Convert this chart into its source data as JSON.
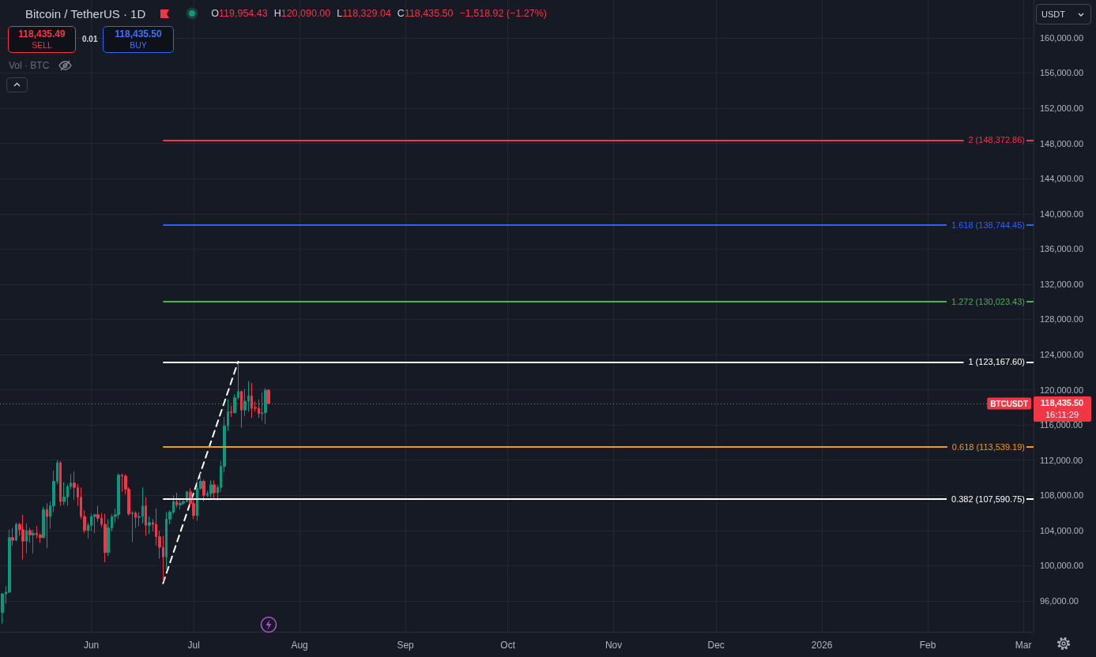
{
  "chart_data": {
    "type": "candlestick",
    "title": "Bitcoin / TetherUS · 1D",
    "annotations": [
      "O119,954.43",
      "H120,090.00",
      "L118,329.04",
      "C118,435.50",
      "−1,518.92 (−1.27%)",
      "118,435.49",
      "SELL",
      "0.01",
      "118,435.50",
      "BUY",
      "Vol · BTC",
      "USDT",
      "16:11:29"
    ],
    "series": [
      {
        "x": [
          "2025-05-06",
          "2025-05-07",
          "2025-05-08",
          "2025-05-09",
          "2025-05-10",
          "2025-05-11",
          "2025-05-12",
          "2025-05-13",
          "2025-05-14",
          "2025-05-15",
          "2025-05-16",
          "2025-05-17",
          "2025-05-18",
          "2025-05-19",
          "2025-05-20",
          "2025-05-21",
          "2025-05-22",
          "2025-05-23",
          "2025-05-24",
          "2025-05-25",
          "2025-05-26",
          "2025-05-27",
          "2025-05-28",
          "2025-05-29",
          "2025-05-30",
          "2025-05-31",
          "2025-06-01",
          "2025-06-02",
          "2025-06-03",
          "2025-06-04",
          "2025-06-05",
          "2025-06-06",
          "2025-06-07",
          "2025-06-08",
          "2025-06-09",
          "2025-06-10",
          "2025-06-11",
          "2025-06-12",
          "2025-06-13",
          "2025-06-14",
          "2025-06-15",
          "2025-06-16",
          "2025-06-17",
          "2025-06-18",
          "2025-06-19",
          "2025-06-20",
          "2025-06-21",
          "2025-06-22",
          "2025-06-23",
          "2025-06-24",
          "2025-06-25",
          "2025-06-26",
          "2025-06-27",
          "2025-06-28",
          "2025-06-29",
          "2025-06-30",
          "2025-07-01",
          "2025-07-02",
          "2025-07-03",
          "2025-07-04",
          "2025-07-05",
          "2025-07-06",
          "2025-07-07",
          "2025-07-08",
          "2025-07-09",
          "2025-07-10",
          "2025-07-11",
          "2025-07-12",
          "2025-07-13",
          "2025-07-14",
          "2025-07-15",
          "2025-07-16",
          "2025-07-17",
          "2025-07-18",
          "2025-07-19",
          "2025-07-20",
          "2025-07-21",
          "2025-07-22",
          "2025-07-23"
        ],
        "ohlc": [
          [
            94700,
            96900,
            93400,
            96800
          ],
          [
            96800,
            97700,
            95700,
            97000
          ],
          [
            97000,
            104100,
            96900,
            103200
          ],
          [
            103200,
            104300,
            102300,
            102900
          ],
          [
            102900,
            104900,
            102800,
            104700
          ],
          [
            104700,
            104900,
            103400,
            104100
          ],
          [
            104100,
            105800,
            100700,
            102800
          ],
          [
            102800,
            104800,
            101400,
            104000
          ],
          [
            104000,
            104300,
            102600,
            103500
          ],
          [
            103500,
            104100,
            101400,
            103700
          ],
          [
            103700,
            104500,
            103100,
            103500
          ],
          [
            103500,
            103700,
            102600,
            103200
          ],
          [
            103200,
            106700,
            103100,
            106400
          ],
          [
            106400,
            107100,
            102000,
            105600
          ],
          [
            105600,
            107300,
            104200,
            106800
          ],
          [
            106800,
            110800,
            106100,
            109600
          ],
          [
            109600,
            112000,
            109300,
            111700
          ],
          [
            111700,
            111900,
            106800,
            107300
          ],
          [
            107300,
            109500,
            106900,
            107800
          ],
          [
            107800,
            109300,
            106800,
            109000
          ],
          [
            109000,
            110400,
            108700,
            109400
          ],
          [
            109400,
            110700,
            107500,
            108900
          ],
          [
            108900,
            109300,
            106800,
            107800
          ],
          [
            107800,
            108900,
            105300,
            105600
          ],
          [
            105600,
            106300,
            103700,
            104000
          ],
          [
            104000,
            104900,
            103100,
            104600
          ],
          [
            104600,
            105900,
            103900,
            105600
          ],
          [
            105600,
            105900,
            103700,
            105800
          ],
          [
            105800,
            106800,
            105000,
            105400
          ],
          [
            105400,
            106000,
            104400,
            104700
          ],
          [
            104700,
            105900,
            100400,
            101500
          ],
          [
            101500,
            105300,
            101100,
            104300
          ],
          [
            104300,
            105900,
            103900,
            105600
          ],
          [
            105600,
            106500,
            104900,
            105800
          ],
          [
            105800,
            110500,
            105300,
            110300
          ],
          [
            110300,
            110500,
            108400,
            110200
          ],
          [
            110200,
            110400,
            108100,
            108700
          ],
          [
            108700,
            108900,
            105700,
            105900
          ],
          [
            105900,
            106200,
            102700,
            106000
          ],
          [
            106000,
            106200,
            104300,
            105500
          ],
          [
            105500,
            106100,
            104500,
            105600
          ],
          [
            105600,
            108900,
            104800,
            106800
          ],
          [
            106800,
            107800,
            103400,
            104600
          ],
          [
            104600,
            105600,
            103600,
            104900
          ],
          [
            104900,
            105300,
            103900,
            104700
          ],
          [
            104700,
            106500,
            102300,
            103300
          ],
          [
            103300,
            104000,
            100800,
            102100
          ],
          [
            102100,
            103400,
            98200,
            101000
          ],
          [
            101000,
            106100,
            99600,
            105300
          ],
          [
            105300,
            106300,
            104700,
            106100
          ],
          [
            106100,
            108000,
            105900,
            107300
          ],
          [
            107300,
            108300,
            106600,
            106900
          ],
          [
            106900,
            107700,
            106400,
            107100
          ],
          [
            107100,
            107600,
            106900,
            107300
          ],
          [
            107300,
            108500,
            107200,
            108400
          ],
          [
            108400,
            108800,
            106700,
            107100
          ],
          [
            107100,
            107600,
            105300,
            105700
          ],
          [
            105700,
            109800,
            105100,
            108800
          ],
          [
            108800,
            110500,
            108600,
            109600
          ],
          [
            109600,
            109800,
            107300,
            108000
          ],
          [
            108000,
            108500,
            107800,
            108200
          ],
          [
            108200,
            109700,
            107800,
            109200
          ],
          [
            109200,
            109700,
            107500,
            108300
          ],
          [
            108300,
            109200,
            107400,
            108900
          ],
          [
            108900,
            111900,
            108400,
            111300
          ],
          [
            111300,
            116900,
            110600,
            115900
          ],
          [
            115900,
            118900,
            115300,
            117500
          ],
          [
            117500,
            118200,
            116900,
            117400
          ],
          [
            117400,
            119500,
            117300,
            119100
          ],
          [
            119100,
            123200,
            118900,
            119800
          ],
          [
            119800,
            119900,
            115700,
            117700
          ],
          [
            117700,
            120100,
            117000,
            118700
          ],
          [
            118700,
            121000,
            117500,
            119300
          ],
          [
            119300,
            120800,
            116800,
            117900
          ],
          [
            118000,
            118700,
            117500,
            117900
          ],
          [
            117900,
            118900,
            116800,
            117300
          ],
          [
            117300,
            119700,
            116500,
            117400
          ],
          [
            117400,
            120200,
            116100,
            119950
          ],
          [
            119954.43,
            120090.0,
            118329.04,
            118435.5
          ]
        ]
      },
      {
        "type": "line",
        "x": [
          "2025-06-22",
          "2025-07-14"
        ],
        "values": [
          98000,
          123200
        ],
        "color": "#ffffff",
        "line_style": "dashed"
      }
    ],
    "xlim": [
      "2025-05-05T06:00",
      "2026-03-04"
    ],
    "xticks": [
      {
        "value": "2025-06-01",
        "label": "Jun"
      },
      {
        "value": "2025-07-01",
        "label": "Jul"
      },
      {
        "value": "2025-08-01",
        "label": "Aug"
      },
      {
        "value": "2025-09-01",
        "label": "Sep"
      },
      {
        "value": "2025-10-01",
        "label": "Oct"
      },
      {
        "value": "2025-11-01",
        "label": "Nov"
      },
      {
        "value": "2025-12-01",
        "label": "Dec"
      },
      {
        "value": "2026-01-01",
        "label": "2026"
      },
      {
        "value": "2026-02-01",
        "label": "Feb"
      },
      {
        "value": "2026-03-01",
        "label": "Mar"
      }
    ],
    "ylim": [
      92500,
      164300
    ],
    "yticks": [
      {
        "value": 96000,
        "label": "96,000.00"
      },
      {
        "value": 100000,
        "label": "100,000.00"
      },
      {
        "value": 104000,
        "label": "104,000.00"
      },
      {
        "value": 108000,
        "label": "108,000.00"
      },
      {
        "value": 112000,
        "label": "112,000.00"
      },
      {
        "value": 116000,
        "label": "116,000.00"
      },
      {
        "value": 120000,
        "label": "120,000.00"
      },
      {
        "value": 124000,
        "label": "124,000.00"
      },
      {
        "value": 128000,
        "label": "128,000.00"
      },
      {
        "value": 132000,
        "label": "132,000.00"
      },
      {
        "value": 136000,
        "label": "136,000.00"
      },
      {
        "value": 140000,
        "label": "140,000.00"
      },
      {
        "value": 144000,
        "label": "144,000.00"
      },
      {
        "value": 148000,
        "label": "148,000.00"
      },
      {
        "value": 152000,
        "label": "152,000.00"
      },
      {
        "value": 156000,
        "label": "156,000.00"
      },
      {
        "value": 160000,
        "label": "160,000.00"
      }
    ],
    "grid": true,
    "ref_lines": [
      {
        "axis": "y",
        "value": 148372.86,
        "label": "2 (148,372.86)",
        "color": "#f23645",
        "line_style": "solid"
      },
      {
        "axis": "y",
        "value": 138744.45,
        "label": "1.618 (138,744.45)",
        "color": "#2962ff",
        "line_style": "solid"
      },
      {
        "axis": "y",
        "value": 130023.43,
        "label": "1.272 (130,023.43)",
        "color": "#4caf50",
        "line_style": "solid"
      },
      {
        "axis": "y",
        "value": 123167.6,
        "label": "1 (123,167.60)",
        "color": "#ffffff",
        "line_style": "solid"
      },
      {
        "axis": "y",
        "value": 113539.19,
        "label": "0.618 (113,539.19)",
        "color": "#ff9800",
        "line_style": "solid"
      },
      {
        "axis": "y",
        "value": 107590.75,
        "label": "0.382 (107,590.75)",
        "color": "#ffffff",
        "line_style": "solid"
      },
      {
        "axis": "y",
        "value": 118435.5,
        "label": "BTCUSDT",
        "color": "#f23645",
        "line_style": "dotted"
      }
    ]
  }
}
